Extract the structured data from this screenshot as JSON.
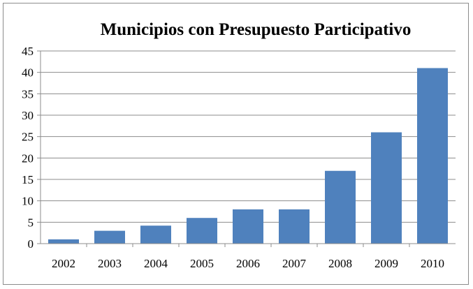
{
  "chart_data": {
    "type": "bar",
    "title": "Municipios con Presupuesto Participativo",
    "categories": [
      "2002",
      "2003",
      "2004",
      "2005",
      "2006",
      "2007",
      "2008",
      "2009",
      "2010"
    ],
    "values": [
      1,
      3,
      4.2,
      6,
      8,
      8,
      17,
      26,
      41
    ],
    "xlabel": "",
    "ylabel": "",
    "ylim": [
      0,
      45
    ],
    "yticks": [
      0,
      5,
      10,
      15,
      20,
      25,
      30,
      35,
      40,
      45
    ],
    "grid": true,
    "legend": "none",
    "colors": {
      "bar": "#4F81BD",
      "grid": "#8C8C8C",
      "axis": "#8C8C8C"
    }
  }
}
